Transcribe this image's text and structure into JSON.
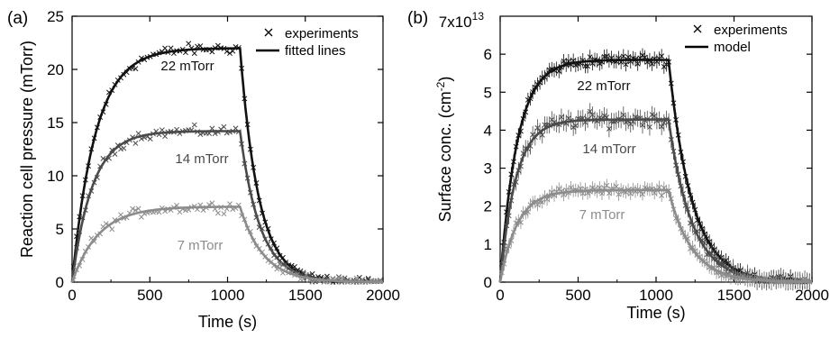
{
  "chart_data": [
    {
      "type": "scatter+line",
      "panel_label": "(a)",
      "xlabel": "Time (s)",
      "ylabel": "Reaction cell pressure (mTorr)",
      "xlim": [
        0,
        2000
      ],
      "ylim": [
        0,
        25
      ],
      "xticks": [
        0,
        500,
        1000,
        1500,
        2000
      ],
      "yticks": [
        0,
        5,
        10,
        15,
        20,
        25
      ],
      "legend": {
        "position": "top-right",
        "entries": [
          {
            "marker": "cross",
            "label": "experiments"
          },
          {
            "marker": "line",
            "label": "fitted lines"
          }
        ]
      },
      "switch_time": 1080,
      "series": [
        {
          "name": "22 mTorr",
          "color": "#111111",
          "label": "22 mTorr",
          "plateau": 22,
          "rise_tau": 150,
          "decay_tau": 120,
          "noise": 0.45
        },
        {
          "name": "14 mTorr",
          "color": "#4a4a4a",
          "label": "14 mTorr",
          "plateau": 14.2,
          "rise_tau": 130,
          "decay_tau": 130,
          "noise": 0.4
        },
        {
          "name": "7 mTorr",
          "color": "#8c8c8c",
          "label": "7 mTorr",
          "plateau": 7.1,
          "rise_tau": 170,
          "decay_tau": 150,
          "noise": 0.4
        }
      ]
    },
    {
      "type": "scatter+line",
      "panel_label": "(b)",
      "xlabel": "Time (s)",
      "ylabel": "Surface conc. (cm-2)",
      "ylabel_base": "Surface conc. (cm",
      "ylabel_exp": "-2",
      "ylabel_end": ")",
      "scale_prefix": "7x10",
      "scale_exp": "13",
      "xlim": [
        0,
        2000
      ],
      "ylim": [
        0,
        7
      ],
      "xticks": [
        0,
        500,
        1000,
        1500,
        2000
      ],
      "yticks": [
        0,
        1,
        2,
        3,
        4,
        5,
        6
      ],
      "legend": {
        "position": "top-right",
        "entries": [
          {
            "marker": "cross",
            "label": "experiments"
          },
          {
            "marker": "line",
            "label": "model"
          }
        ]
      },
      "switch_time": 1080,
      "series": [
        {
          "name": "22 mTorr",
          "color": "#111111",
          "label": "22 mTorr",
          "plateau": 5.85,
          "rise_tau": 110,
          "decay_tau": 150,
          "noise": 0.12
        },
        {
          "name": "14 mTorr",
          "color": "#4a4a4a",
          "label": "14 mTorr",
          "plateau": 4.28,
          "rise_tau": 100,
          "decay_tau": 150,
          "noise": 0.16
        },
        {
          "name": "7 mTorr",
          "color": "#8c8c8c",
          "label": "7 mTorr",
          "plateau": 2.42,
          "rise_tau": 110,
          "decay_tau": 150,
          "noise": 0.1
        }
      ]
    }
  ]
}
